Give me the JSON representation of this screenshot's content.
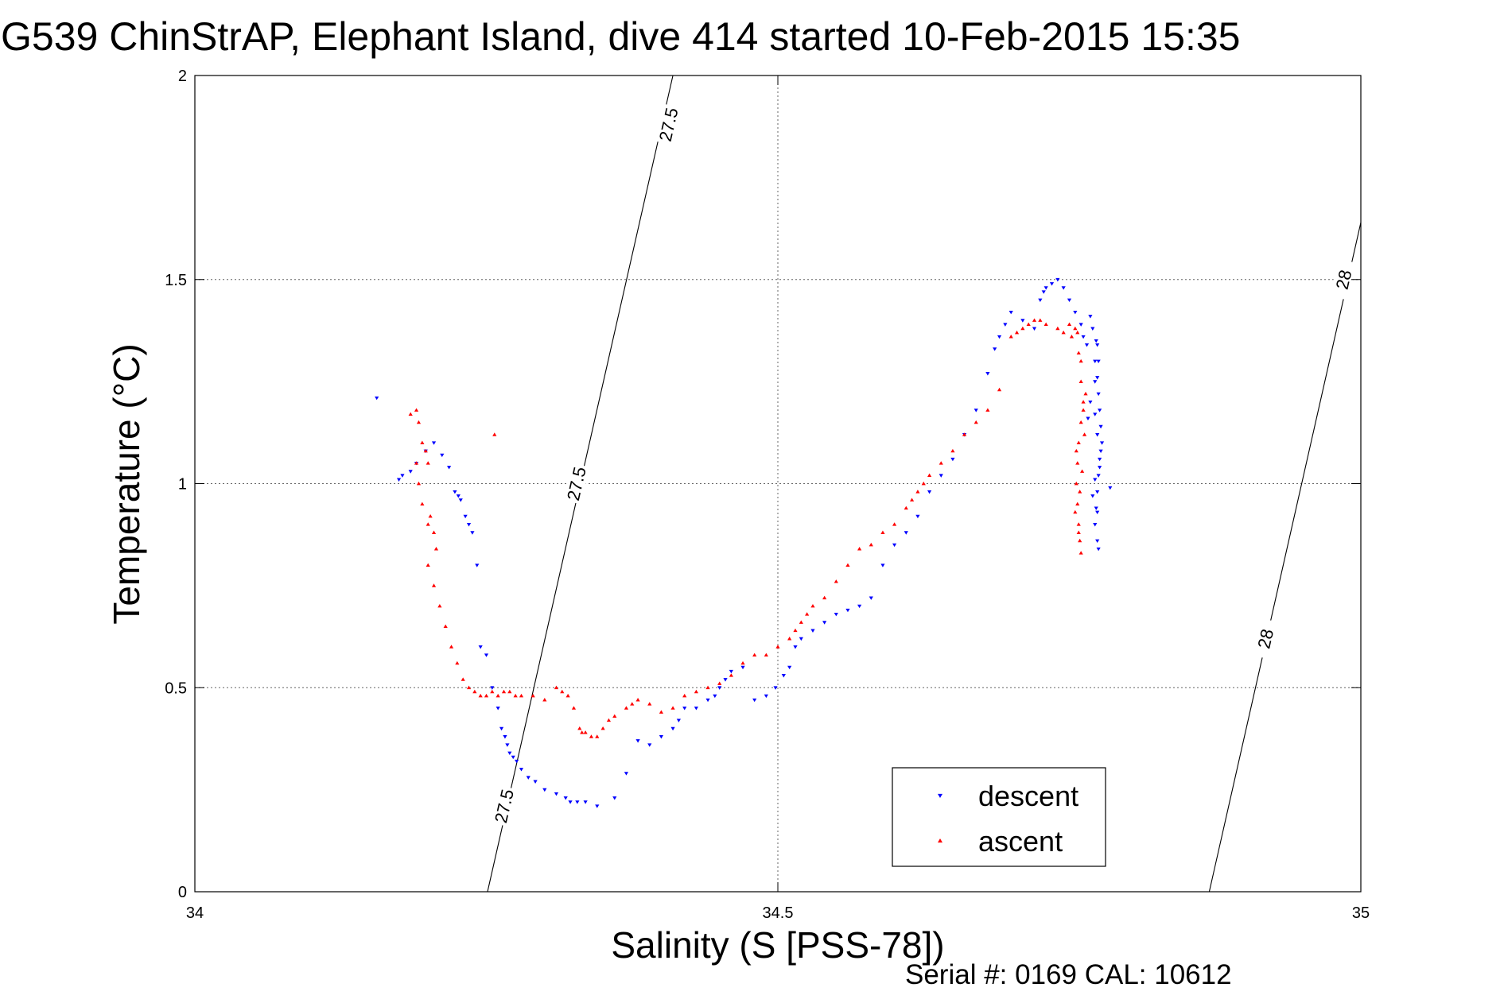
{
  "chart_data": {
    "type": "scatter",
    "title": "G539 ChinStrAP, Elephant Island, dive 414 started 10-Feb-2015 15:35",
    "xlabel": "Salinity (S [PSS-78])",
    "ylabel": "Temperature (°C)",
    "xlim": [
      34,
      35
    ],
    "ylim": [
      0,
      2
    ],
    "xticks": [
      34,
      34.5,
      35
    ],
    "xtick_labels": [
      "34",
      "34.5",
      "35"
    ],
    "yticks": [
      0,
      0.5,
      1,
      1.5,
      2
    ],
    "ytick_labels": [
      "0",
      "0.5",
      "1",
      "1.5",
      "2"
    ],
    "grid": true,
    "legend_position": "bottom-right",
    "isopycnals": [
      {
        "label": "27.5",
        "points": [
          [
            34.251,
            0
          ],
          [
            34.41,
            2
          ]
        ],
        "label_points": [
          [
            34.265,
            0.21
          ],
          [
            34.327,
            1.0
          ],
          [
            34.406,
            1.88
          ]
        ]
      },
      {
        "label": "28",
        "points": [
          [
            34.87,
            0
          ],
          [
            35,
            1.64
          ]
        ],
        "label_points": [
          [
            34.918,
            0.62
          ],
          [
            34.985,
            1.5
          ]
        ]
      }
    ],
    "series": [
      {
        "name": "descent",
        "color": "#0000ff",
        "marker": "triangle-down",
        "x": [
          34.156,
          34.175,
          34.178,
          34.185,
          34.19,
          34.198,
          34.205,
          34.212,
          34.218,
          34.223,
          34.226,
          34.228,
          34.232,
          34.235,
          34.238,
          34.242,
          34.245,
          34.25,
          34.255,
          34.26,
          34.263,
          34.266,
          34.268,
          34.27,
          34.273,
          34.276,
          34.28,
          34.286,
          34.292,
          34.3,
          34.31,
          34.318,
          34.322,
          34.328,
          34.335,
          34.345,
          34.36,
          34.37,
          34.38,
          34.39,
          34.4,
          34.41,
          34.415,
          34.42,
          34.43,
          34.44,
          34.446,
          34.45,
          34.455,
          34.46,
          34.47,
          34.48,
          34.49,
          34.498,
          34.505,
          34.51,
          34.515,
          34.52,
          34.53,
          34.54,
          34.55,
          34.56,
          34.57,
          34.58,
          34.59,
          34.6,
          34.61,
          34.62,
          34.63,
          34.64,
          34.65,
          34.66,
          34.67,
          34.68,
          34.686,
          34.69,
          34.695,
          34.7,
          34.71,
          34.72,
          34.725,
          34.728,
          34.73,
          34.735,
          34.74,
          34.745,
          34.75,
          34.755,
          34.76,
          34.762,
          34.765,
          34.768,
          34.77,
          34.772,
          34.774,
          34.775,
          34.776,
          34.777,
          34.778,
          34.776,
          34.775,
          34.774,
          34.773,
          34.772,
          34.774,
          34.775,
          34.772,
          34.774,
          34.777,
          34.776,
          34.772,
          34.77,
          34.774,
          34.775,
          34.772,
          34.768,
          34.785,
          34.774,
          34.773,
          34.766
        ],
        "y": [
          1.21,
          1.01,
          1.02,
          1.03,
          1.05,
          1.08,
          1.1,
          1.07,
          1.04,
          0.98,
          0.97,
          0.96,
          0.92,
          0.9,
          0.88,
          0.8,
          0.6,
          0.58,
          0.5,
          0.45,
          0.4,
          0.38,
          0.36,
          0.34,
          0.33,
          0.32,
          0.3,
          0.28,
          0.27,
          0.25,
          0.24,
          0.23,
          0.22,
          0.22,
          0.22,
          0.21,
          0.23,
          0.29,
          0.37,
          0.36,
          0.38,
          0.4,
          0.42,
          0.45,
          0.45,
          0.47,
          0.48,
          0.5,
          0.52,
          0.54,
          0.55,
          0.47,
          0.48,
          0.5,
          0.53,
          0.55,
          0.6,
          0.62,
          0.64,
          0.66,
          0.68,
          0.69,
          0.7,
          0.72,
          0.8,
          0.85,
          0.88,
          0.92,
          0.98,
          1.02,
          1.06,
          1.12,
          1.18,
          1.27,
          1.33,
          1.36,
          1.39,
          1.42,
          1.4,
          1.38,
          1.45,
          1.47,
          1.48,
          1.49,
          1.5,
          1.48,
          1.45,
          1.42,
          1.39,
          1.36,
          1.34,
          1.41,
          1.38,
          1.3,
          1.26,
          1.22,
          1.18,
          1.14,
          1.1,
          1.06,
          1.02,
          0.98,
          0.94,
          0.9,
          0.86,
          0.84,
          1.17,
          1.12,
          1.08,
          1.04,
          1.01,
          0.97,
          0.93,
          1.3,
          1.25,
          1.2,
          0.99,
          1.34,
          1.35,
          1.16
        ]
      },
      {
        "name": "ascent",
        "color": "#ff0000",
        "marker": "triangle-up",
        "x": [
          34.185,
          34.19,
          34.192,
          34.195,
          34.198,
          34.2,
          34.202,
          34.205,
          34.207,
          34.2,
          34.195,
          34.192,
          34.19,
          34.2,
          34.205,
          34.21,
          34.215,
          34.22,
          34.225,
          34.23,
          34.235,
          34.24,
          34.245,
          34.25,
          34.255,
          34.26,
          34.265,
          34.27,
          34.275,
          34.28,
          34.29,
          34.3,
          34.31,
          34.315,
          34.32,
          34.325,
          34.33,
          34.332,
          34.335,
          34.34,
          34.345,
          34.35,
          34.355,
          34.36,
          34.37,
          34.375,
          34.38,
          34.39,
          34.4,
          34.41,
          34.42,
          34.43,
          34.44,
          34.45,
          34.46,
          34.47,
          34.48,
          34.49,
          34.5,
          34.51,
          34.515,
          34.52,
          34.525,
          34.53,
          34.54,
          34.55,
          34.56,
          34.57,
          34.58,
          34.59,
          34.6,
          34.61,
          34.615,
          34.62,
          34.625,
          34.63,
          34.64,
          34.65,
          34.66,
          34.67,
          34.68,
          34.69,
          34.7,
          34.705,
          34.71,
          34.715,
          34.72,
          34.725,
          34.73,
          34.74,
          34.745,
          34.75,
          34.752,
          34.755,
          34.757,
          34.758,
          34.76,
          34.76,
          34.762,
          34.76,
          34.758,
          34.757,
          34.756,
          34.757,
          34.758,
          34.759,
          34.76,
          34.758,
          34.755,
          34.756,
          34.762,
          34.764,
          34.763,
          34.761,
          34.759,
          34.257
        ],
        "y": [
          1.17,
          1.18,
          1.15,
          1.1,
          1.08,
          1.05,
          0.92,
          0.88,
          0.84,
          0.9,
          0.95,
          1.0,
          1.05,
          0.8,
          0.75,
          0.7,
          0.65,
          0.6,
          0.56,
          0.52,
          0.5,
          0.49,
          0.48,
          0.48,
          0.49,
          0.48,
          0.49,
          0.49,
          0.48,
          0.48,
          0.48,
          0.47,
          0.5,
          0.49,
          0.48,
          0.45,
          0.4,
          0.39,
          0.39,
          0.38,
          0.38,
          0.4,
          0.42,
          0.43,
          0.45,
          0.46,
          0.47,
          0.46,
          0.44,
          0.45,
          0.48,
          0.49,
          0.5,
          0.51,
          0.53,
          0.56,
          0.58,
          0.58,
          0.6,
          0.62,
          0.64,
          0.66,
          0.68,
          0.7,
          0.72,
          0.76,
          0.8,
          0.84,
          0.85,
          0.88,
          0.9,
          0.94,
          0.96,
          0.98,
          1.0,
          1.02,
          1.05,
          1.08,
          1.12,
          1.15,
          1.18,
          1.23,
          1.36,
          1.37,
          1.38,
          1.39,
          1.4,
          1.4,
          1.39,
          1.38,
          1.37,
          1.39,
          1.36,
          1.38,
          1.37,
          1.32,
          1.3,
          1.25,
          1.2,
          1.15,
          1.1,
          1.05,
          1.0,
          0.95,
          0.9,
          0.86,
          0.83,
          0.88,
          0.93,
          1.08,
          1.18,
          1.22,
          1.12,
          1.03,
          0.98,
          1.12
        ]
      }
    ],
    "footer": "Serial #: 0169 CAL: 10612"
  }
}
